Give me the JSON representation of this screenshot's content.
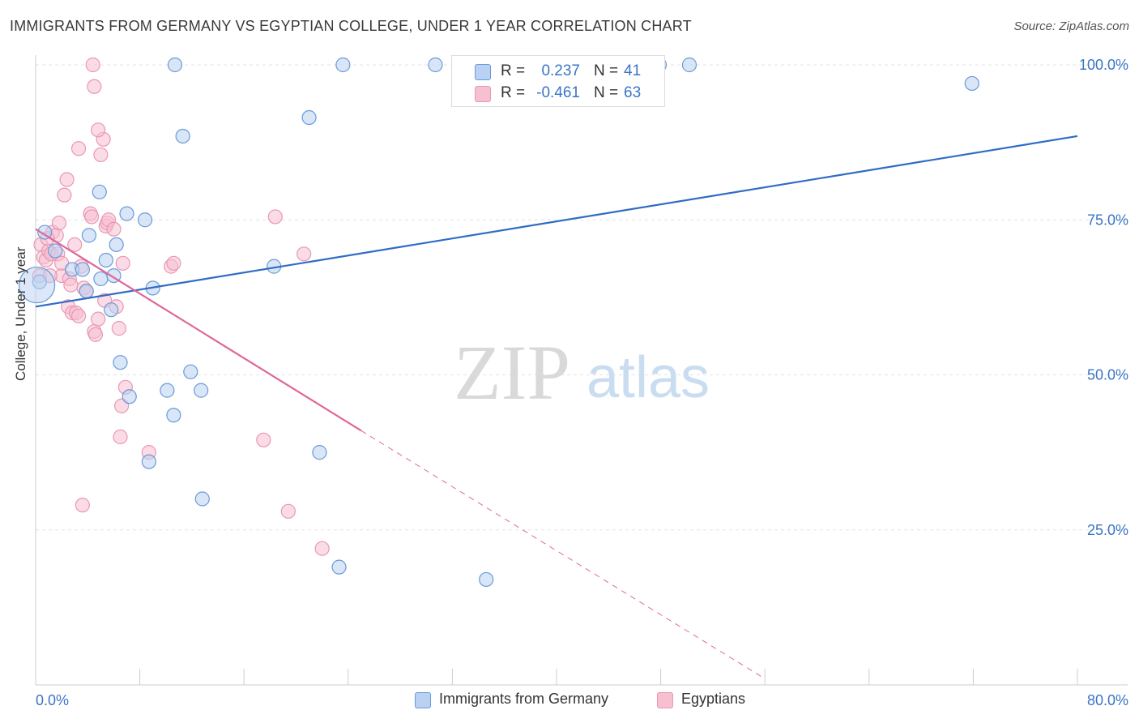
{
  "title": "IMMIGRANTS FROM GERMANY VS EGYPTIAN COLLEGE, UNDER 1 YEAR CORRELATION CHART",
  "source": "Source: ZipAtlas.com",
  "watermark": {
    "zip": "ZIP",
    "atlas": "atlas"
  },
  "stats": {
    "r_label": "R =",
    "n_label": "N =",
    "germany": {
      "r": "0.237",
      "n": "41"
    },
    "egypt": {
      "r": "-0.461",
      "n": "63"
    }
  },
  "colors": {
    "blue_fill": "#b9d1f3",
    "blue_stroke": "#6a9ad8",
    "blue_line": "#2f6cc4",
    "pink_fill": "#f7c0d1",
    "pink_stroke": "#e898b3",
    "pink_line": "#e0679a",
    "tick_text": "#3b74c6"
  },
  "chart_data": {
    "type": "scatter",
    "title": "IMMIGRANTS FROM GERMANY VS EGYPTIAN COLLEGE, UNDER 1 YEAR CORRELATION CHART",
    "xlabel": "",
    "ylabel": "College, Under 1 year",
    "xlim": [
      0,
      80
    ],
    "ylim": [
      0,
      100
    ],
    "x_tick_labels": [
      "0.0%",
      "80.0%"
    ],
    "y_ticks": [
      25,
      50,
      75,
      100
    ],
    "y_tick_labels": [
      "25.0%",
      "50.0%",
      "75.0%",
      "100.0%"
    ],
    "series": [
      {
        "name": "Immigrants from Germany",
        "color": "#6a9ad8",
        "points": [
          [
            0.3,
            65
          ],
          [
            0.7,
            73
          ],
          [
            1.5,
            70
          ],
          [
            2.8,
            67
          ],
          [
            4.9,
            79.5
          ],
          [
            3.6,
            67
          ],
          [
            4.1,
            72.5
          ],
          [
            5.4,
            68.5
          ],
          [
            3.9,
            63.5
          ],
          [
            5.0,
            65.5
          ],
          [
            5.8,
            60.5
          ],
          [
            6.0,
            66
          ],
          [
            6.2,
            71
          ],
          [
            6.5,
            52
          ],
          [
            7.0,
            76
          ],
          [
            7.2,
            46.5
          ],
          [
            8.4,
            75
          ],
          [
            8.7,
            36
          ],
          [
            9.0,
            64
          ],
          [
            10.1,
            47.5
          ],
          [
            10.6,
            43.5
          ],
          [
            11.3,
            88.5
          ],
          [
            11.9,
            50.5
          ],
          [
            12.7,
            47.5
          ],
          [
            12.8,
            30
          ],
          [
            18.3,
            67.5
          ],
          [
            21.0,
            91.5
          ],
          [
            21.8,
            37.5
          ],
          [
            23.3,
            19
          ],
          [
            34.6,
            17
          ],
          [
            10.7,
            100
          ],
          [
            23.6,
            100
          ],
          [
            30.7,
            100
          ],
          [
            47.9,
            100
          ],
          [
            50.2,
            100
          ],
          [
            71.9,
            97
          ]
        ],
        "big_points": [
          [
            0.1,
            64.5
          ]
        ]
      },
      {
        "name": "Egyptians",
        "color": "#e898b3",
        "points": [
          [
            0.3,
            66
          ],
          [
            0.4,
            71
          ],
          [
            0.6,
            69
          ],
          [
            0.8,
            68.5
          ],
          [
            1.0,
            70
          ],
          [
            1.2,
            69.5
          ],
          [
            1.3,
            73
          ],
          [
            1.6,
            72.5
          ],
          [
            1.7,
            69.5
          ],
          [
            1.8,
            74.5
          ],
          [
            2.0,
            66
          ],
          [
            2.2,
            79
          ],
          [
            2.4,
            81.5
          ],
          [
            2.5,
            61
          ],
          [
            2.6,
            65.5
          ],
          [
            2.7,
            64.5
          ],
          [
            2.8,
            60
          ],
          [
            3.0,
            71
          ],
          [
            3.1,
            60
          ],
          [
            3.3,
            86.5
          ],
          [
            3.5,
            67.5
          ],
          [
            3.7,
            64
          ],
          [
            3.9,
            63.5
          ],
          [
            4.2,
            76
          ],
          [
            4.3,
            75.5
          ],
          [
            4.5,
            57
          ],
          [
            4.6,
            56.5
          ],
          [
            4.8,
            59
          ],
          [
            5.0,
            85.5
          ],
          [
            5.2,
            88
          ],
          [
            5.4,
            74
          ],
          [
            5.5,
            74.5
          ],
          [
            5.6,
            75
          ],
          [
            6.0,
            73.5
          ],
          [
            6.2,
            61
          ],
          [
            6.4,
            57.5
          ],
          [
            6.6,
            45
          ],
          [
            6.5,
            40
          ],
          [
            6.7,
            68
          ],
          [
            6.9,
            48
          ],
          [
            8.7,
            37.5
          ],
          [
            17.5,
            39.5
          ],
          [
            18.4,
            75.5
          ],
          [
            19.4,
            28
          ],
          [
            20.6,
            69.5
          ],
          [
            22.0,
            22
          ],
          [
            4.5,
            96.5
          ],
          [
            4.4,
            100
          ],
          [
            3.3,
            59.5
          ],
          [
            3.6,
            29
          ],
          [
            5.3,
            62
          ],
          [
            10.4,
            67.5
          ],
          [
            10.6,
            68
          ],
          [
            4.8,
            89.5
          ],
          [
            1.1,
            66
          ],
          [
            2.0,
            68
          ],
          [
            0.9,
            72
          ]
        ],
        "big_points": []
      }
    ],
    "trend_lines": [
      {
        "series": "Immigrants from Germany",
        "x": [
          0,
          80
        ],
        "y": [
          61.0,
          88.5
        ],
        "style": "solid"
      },
      {
        "series": "Egyptians",
        "x": [
          0,
          25
        ],
        "y": [
          73.5,
          41.0
        ],
        "style": "solid"
      },
      {
        "series": "Egyptians",
        "x": [
          25,
          56
        ],
        "y": [
          41.0,
          1.0
        ],
        "style": "dashed"
      }
    ]
  },
  "legend": {
    "germany": "Immigrants from Germany",
    "egypt": "Egyptians"
  }
}
